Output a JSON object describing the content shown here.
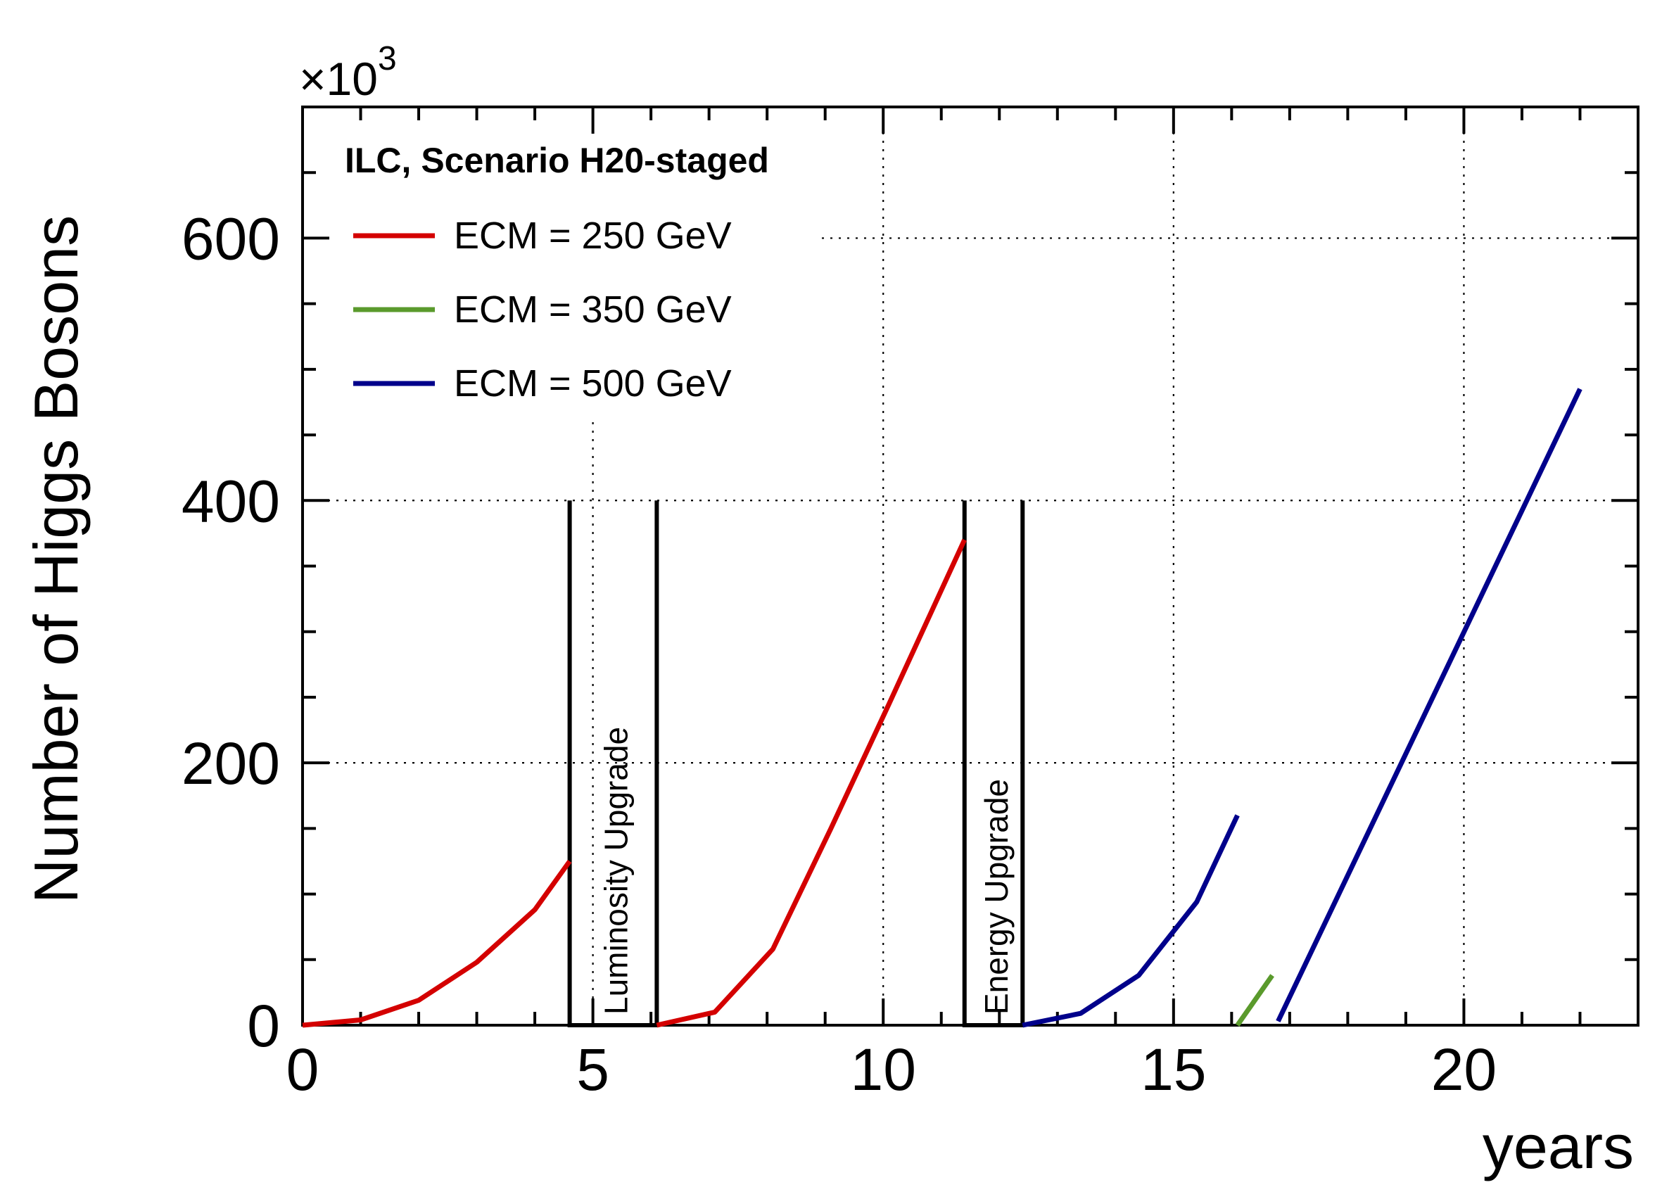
{
  "chart_data": {
    "type": "line",
    "title": "",
    "xlabel": "years",
    "ylabel": "Number of Higgs Bosons",
    "y_multiplier_base": "×10",
    "y_multiplier_exp": "3",
    "xlim": [
      0,
      23
    ],
    "ylim": [
      0,
      700
    ],
    "x_ticks": [
      0,
      5,
      10,
      15,
      20
    ],
    "x_tick_labels": [
      "0",
      "5",
      "10",
      "15",
      "20"
    ],
    "y_ticks": [
      0,
      200,
      400,
      600
    ],
    "y_tick_labels": [
      "0",
      "200",
      "400",
      "600"
    ],
    "grid": true,
    "legend_title": "ILC, Scenario H20-staged",
    "legend_position": "top-left",
    "series": [
      {
        "name": "ECM = 250 GeV",
        "color": "#d40000",
        "segments": [
          [
            [
              0,
              0
            ],
            [
              1,
              4
            ],
            [
              2,
              19
            ],
            [
              3,
              48
            ],
            [
              4,
              88
            ],
            [
              4.6,
              125
            ]
          ],
          [
            [
              6.1,
              0
            ],
            [
              7.1,
              10
            ],
            [
              8.1,
              58
            ],
            [
              9.1,
              150
            ],
            [
              10.1,
              245
            ],
            [
              11.4,
              370
            ]
          ]
        ]
      },
      {
        "name": "ECM = 350 GeV",
        "color": "#5a9a2c",
        "segments": [
          [
            [
              16.1,
              0
            ],
            [
              16.7,
              38
            ]
          ]
        ]
      },
      {
        "name": "ECM = 500 GeV",
        "color": "#00008b",
        "segments": [
          [
            [
              12.4,
              0
            ],
            [
              13.4,
              9
            ],
            [
              14.4,
              38
            ],
            [
              15.4,
              94
            ],
            [
              16.1,
              160
            ]
          ],
          [
            [
              16.8,
              3
            ],
            [
              22,
              485
            ]
          ]
        ]
      }
    ],
    "annotations": [
      {
        "text": "Luminosity Upgrade",
        "x_start": 4.6,
        "x_end": 6.1,
        "y_top": 400
      },
      {
        "text": "Energy Upgrade",
        "x_start": 11.4,
        "x_end": 12.4,
        "y_top": 400
      }
    ]
  }
}
